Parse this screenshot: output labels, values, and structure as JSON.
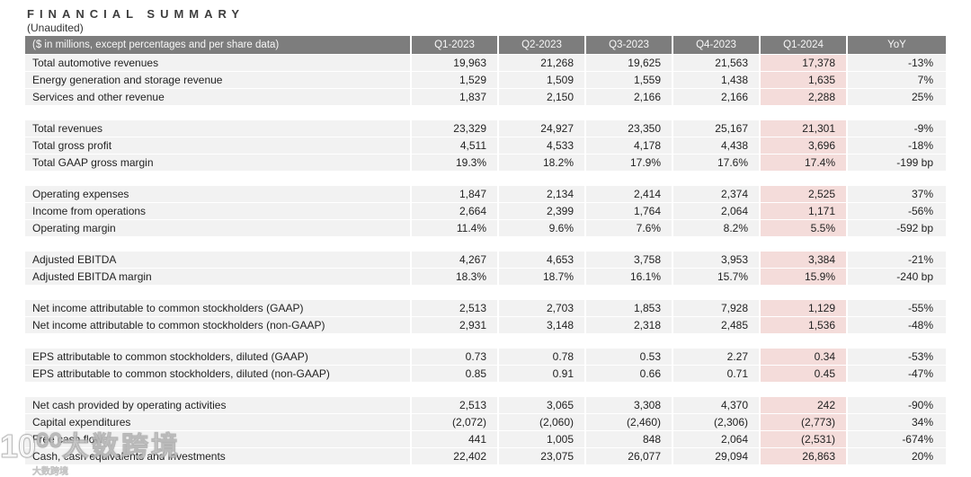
{
  "header": {
    "title": "FINANCIAL SUMMARY",
    "subtitle": "(Unaudited)"
  },
  "table": {
    "label_header": "($ in millions, except percentages and per share data)",
    "columns": [
      "Q1-2023",
      "Q2-2023",
      "Q3-2023",
      "Q4-2023",
      "Q1-2024",
      "YoY"
    ],
    "highlight_column": "Q1-2024",
    "groups": [
      {
        "rows": [
          {
            "label": "Total automotive revenues",
            "values": [
              "19,963",
              "21,268",
              "19,625",
              "21,563",
              "17,378",
              "-13%"
            ]
          },
          {
            "label": "Energy generation and storage revenue",
            "values": [
              "1,529",
              "1,509",
              "1,559",
              "1,438",
              "1,635",
              "7%"
            ]
          },
          {
            "label": "Services and other revenue",
            "values": [
              "1,837",
              "2,150",
              "2,166",
              "2,166",
              "2,288",
              "25%"
            ]
          }
        ]
      },
      {
        "rows": [
          {
            "label": "Total revenues",
            "values": [
              "23,329",
              "24,927",
              "23,350",
              "25,167",
              "21,301",
              "-9%"
            ]
          },
          {
            "label": "Total gross profit",
            "values": [
              "4,511",
              "4,533",
              "4,178",
              "4,438",
              "3,696",
              "-18%"
            ]
          },
          {
            "label": "Total GAAP gross margin",
            "values": [
              "19.3%",
              "18.2%",
              "17.9%",
              "17.6%",
              "17.4%",
              "-199 bp"
            ]
          }
        ]
      },
      {
        "rows": [
          {
            "label": "Operating expenses",
            "values": [
              "1,847",
              "2,134",
              "2,414",
              "2,374",
              "2,525",
              "37%"
            ]
          },
          {
            "label": "Income from operations",
            "values": [
              "2,664",
              "2,399",
              "1,764",
              "2,064",
              "1,171",
              "-56%"
            ]
          },
          {
            "label": "Operating margin",
            "values": [
              "11.4%",
              "9.6%",
              "7.6%",
              "8.2%",
              "5.5%",
              "-592 bp"
            ]
          }
        ]
      },
      {
        "rows": [
          {
            "label": "Adjusted EBITDA",
            "values": [
              "4,267",
              "4,653",
              "3,758",
              "3,953",
              "3,384",
              "-21%"
            ]
          },
          {
            "label": "Adjusted EBITDA margin",
            "values": [
              "18.3%",
              "18.7%",
              "16.1%",
              "15.7%",
              "15.9%",
              "-240 bp"
            ]
          }
        ]
      },
      {
        "rows": [
          {
            "label": "Net income attributable to common stockholders (GAAP)",
            "values": [
              "2,513",
              "2,703",
              "1,853",
              "7,928",
              "1,129",
              "-55%"
            ]
          },
          {
            "label": "Net income attributable to common stockholders (non-GAAP)",
            "values": [
              "2,931",
              "3,148",
              "2,318",
              "2,485",
              "1,536",
              "-48%"
            ]
          }
        ]
      },
      {
        "rows": [
          {
            "label": "EPS attributable to common stockholders, diluted (GAAP)",
            "values": [
              "0.73",
              "0.78",
              "0.53",
              "2.27",
              "0.34",
              "-53%"
            ]
          },
          {
            "label": "EPS attributable to common stockholders, diluted (non-GAAP)",
            "values": [
              "0.85",
              "0.91",
              "0.66",
              "0.71",
              "0.45",
              "-47%"
            ]
          }
        ]
      },
      {
        "rows": [
          {
            "label": "Net cash provided by operating activities",
            "values": [
              "2,513",
              "3,065",
              "3,308",
              "4,370",
              "242",
              "-90%"
            ]
          },
          {
            "label": "Capital expenditures",
            "values": [
              "(2,072)",
              "(2,060)",
              "(2,460)",
              "(2,306)",
              "(2,773)",
              "34%"
            ]
          },
          {
            "label": "Free cash flow",
            "values": [
              "441",
              "1,005",
              "848",
              "2,064",
              "(2,531)",
              "-674%"
            ]
          },
          {
            "label": "Cash, cash equivalents and investments",
            "values": [
              "22,402",
              "23,075",
              "26,077",
              "29,094",
              "26,863",
              "20%"
            ]
          }
        ]
      }
    ]
  },
  "colors": {
    "header_bg": "#7d7d7d",
    "row_bg": "#f2f2f2",
    "highlight_bg": "#f4dcda",
    "title_text": "#3d3d3d"
  },
  "watermark": {
    "logo": "10⁰⁰",
    "text": "大数跨境",
    "caption": "大数跨境"
  }
}
